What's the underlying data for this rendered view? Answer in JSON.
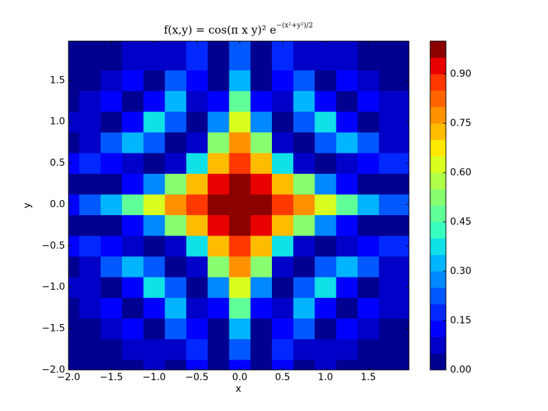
{
  "chart_data": {
    "type": "contourf",
    "title": "f(x,y) = cos(π x y)² e",
    "title_exponent": "−(x²+y²)/2",
    "x_label": "x",
    "y_label": "y",
    "x": [
      -2,
      -1.75,
      -1.5,
      -1.25,
      -1,
      -0.75,
      -0.5,
      -0.25,
      0,
      0.25,
      0.5,
      0.75,
      1,
      1.25,
      1.5,
      1.75
    ],
    "y": [
      -2,
      -1.75,
      -1.5,
      -1.25,
      -1,
      -0.75,
      -0.5,
      -0.25,
      0,
      0.25,
      0.5,
      0.75,
      1,
      1.25,
      1.5,
      1.75
    ],
    "z": [
      [
        0.018,
        0,
        0.044,
        0,
        0.082,
        0,
        0.119,
        0,
        0.135,
        0,
        0.119,
        0,
        0.082,
        0,
        0.044,
        0
      ],
      [
        0,
        0.045,
        0.01,
        0.068,
        0.066,
        0.05,
        0.163,
        0.008,
        0.216,
        0.008,
        0.163,
        0.05,
        0.066,
        0.068,
        0.01,
        0.045
      ],
      [
        0.044,
        0.01,
        0.053,
        0.127,
        0,
        0.21,
        0.143,
        0.046,
        0.325,
        0.046,
        0.143,
        0.21,
        0,
        0.127,
        0.053,
        0.01
      ],
      [
        0,
        0.068,
        0.127,
        0.008,
        0.139,
        0.333,
        0.059,
        0.137,
        0.458,
        0.137,
        0.059,
        0.333,
        0.139,
        0.008,
        0.127,
        0.068
      ],
      [
        0.082,
        0.066,
        0,
        0.139,
        0.368,
        0.229,
        0,
        0.294,
        0.607,
        0.294,
        0,
        0.229,
        0.368,
        0.139,
        0,
        0.066
      ],
      [
        0,
        0.05,
        0.21,
        0.333,
        0.229,
        0.022,
        0.097,
        0.505,
        0.755,
        0.505,
        0.097,
        0.022,
        0.229,
        0.333,
        0.21,
        0.05
      ],
      [
        0.119,
        0.163,
        0.143,
        0.059,
        0,
        0.097,
        0.39,
        0.73,
        0.883,
        0.73,
        0.39,
        0.097,
        0,
        0.059,
        0.143,
        0.163
      ],
      [
        0,
        0.008,
        0.046,
        0.137,
        0.294,
        0.505,
        0.73,
        0.903,
        0.969,
        0.903,
        0.73,
        0.505,
        0.294,
        0.137,
        0.046,
        0.008
      ],
      [
        0.135,
        0.216,
        0.325,
        0.458,
        0.607,
        0.755,
        0.883,
        0.969,
        1,
        0.969,
        0.883,
        0.755,
        0.607,
        0.458,
        0.325,
        0.216
      ],
      [
        0,
        0.008,
        0.046,
        0.137,
        0.294,
        0.505,
        0.73,
        0.903,
        0.969,
        0.903,
        0.73,
        0.505,
        0.294,
        0.137,
        0.046,
        0.008
      ],
      [
        0.119,
        0.163,
        0.143,
        0.059,
        0,
        0.097,
        0.39,
        0.73,
        0.883,
        0.73,
        0.39,
        0.097,
        0,
        0.059,
        0.143,
        0.163
      ],
      [
        0,
        0.05,
        0.21,
        0.333,
        0.229,
        0.022,
        0.097,
        0.505,
        0.755,
        0.505,
        0.097,
        0.022,
        0.229,
        0.333,
        0.21,
        0.05
      ],
      [
        0.082,
        0.066,
        0,
        0.139,
        0.368,
        0.229,
        0,
        0.294,
        0.607,
        0.294,
        0,
        0.229,
        0.368,
        0.139,
        0,
        0.066
      ],
      [
        0,
        0.068,
        0.127,
        0.008,
        0.139,
        0.333,
        0.059,
        0.137,
        0.458,
        0.137,
        0.059,
        0.333,
        0.139,
        0.008,
        0.127,
        0.068
      ],
      [
        0.044,
        0.01,
        0.053,
        0.127,
        0,
        0.21,
        0.143,
        0.046,
        0.325,
        0.046,
        0.143,
        0.21,
        0,
        0.127,
        0.053,
        0.01
      ],
      [
        0,
        0.045,
        0.01,
        0.068,
        0.066,
        0.05,
        0.163,
        0.008,
        0.216,
        0.008,
        0.163,
        0.05,
        0.066,
        0.068,
        0.01,
        0.045
      ]
    ],
    "levels": [
      0,
      0.05,
      0.1,
      0.15,
      0.2,
      0.25,
      0.3,
      0.35,
      0.4,
      0.45,
      0.5,
      0.55,
      0.6,
      0.65,
      0.7,
      0.75,
      0.8,
      0.85,
      0.9,
      0.95,
      1
    ],
    "colors": [
      "#000090",
      "#0000c8",
      "#0000ff",
      "#0028ff",
      "#0058ff",
      "#0088ff",
      "#00b4ff",
      "#10e0e8",
      "#38ffc0",
      "#60ff98",
      "#88ff70",
      "#b0ff48",
      "#d8ff20",
      "#ffe800",
      "#ffbc00",
      "#ff9000",
      "#ff6400",
      "#ff3800",
      "#e80000",
      "#8c0000"
    ],
    "xlim": [
      -2,
      1.975
    ],
    "ylim": [
      -2,
      1.975
    ],
    "xticks": [
      {
        "value": -2,
        "label": "−2.0"
      },
      {
        "value": -1.5,
        "label": "−1.5"
      },
      {
        "value": -1,
        "label": "−1.0"
      },
      {
        "value": -0.5,
        "label": "−0.5"
      },
      {
        "value": 0,
        "label": "0.0"
      },
      {
        "value": 0.5,
        "label": "0.5"
      },
      {
        "value": 1,
        "label": "1.0"
      },
      {
        "value": 1.5,
        "label": "1.5"
      }
    ],
    "yticks": [
      {
        "value": -2,
        "label": "−2.0"
      },
      {
        "value": -1.5,
        "label": "−1.5"
      },
      {
        "value": -1,
        "label": "−1.0"
      },
      {
        "value": -0.5,
        "label": "−0.5"
      },
      {
        "value": 0,
        "label": "0.0"
      },
      {
        "value": 0.5,
        "label": "0.5"
      },
      {
        "value": 1,
        "label": "1.0"
      },
      {
        "value": 1.5,
        "label": "1.5"
      }
    ],
    "colorbar_ticks": [
      {
        "value": 0,
        "label": "0.00"
      },
      {
        "value": 0.15,
        "label": "0.15"
      },
      {
        "value": 0.3,
        "label": "0.30"
      },
      {
        "value": 0.45,
        "label": "0.45"
      },
      {
        "value": 0.6,
        "label": "0.60"
      },
      {
        "value": 0.75,
        "label": "0.75"
      },
      {
        "value": 0.9,
        "label": "0.90"
      }
    ]
  }
}
